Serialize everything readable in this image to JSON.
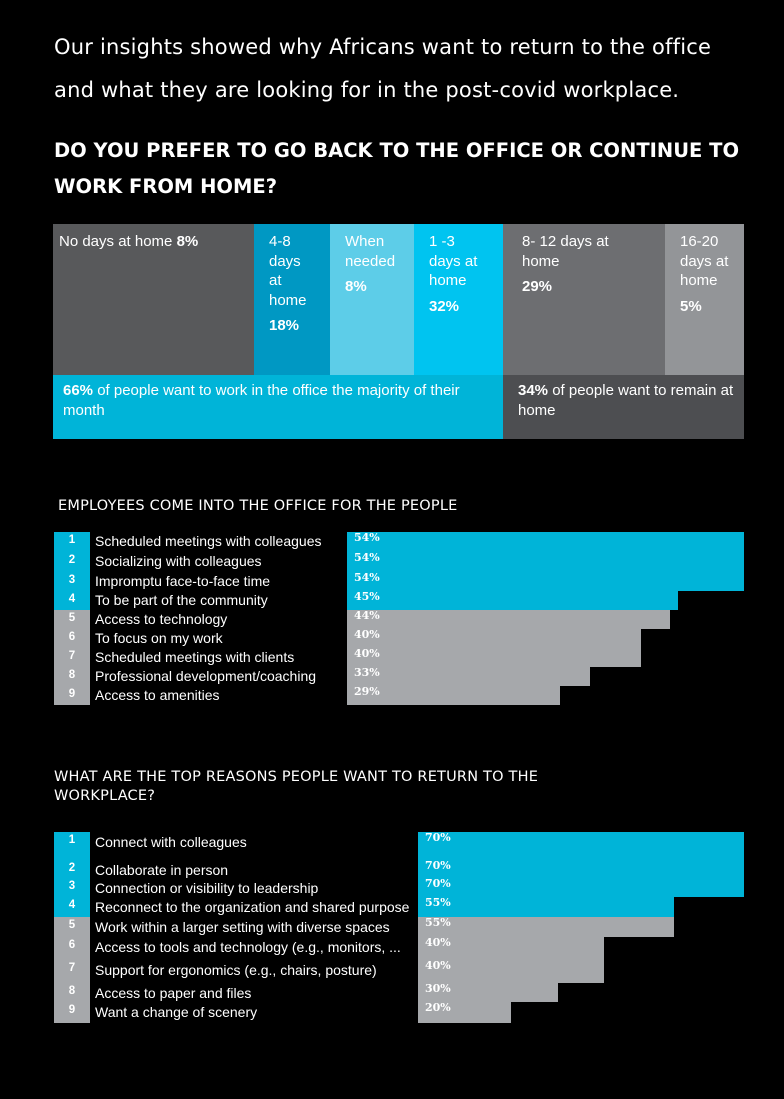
{
  "intro": {
    "line1": "Our insights showed why Africans want to return to the office",
    "line2": "and what they are looking for in the post-covid workplace."
  },
  "question": {
    "line1": "DO YOU PREFER TO GO BACK TO THE OFFICE OR CONTINUE TO",
    "line2": "WORK FROM HOME?"
  },
  "colors": {
    "cyan": "#00b4d8",
    "gray": "#a6a8ab",
    "dark_gray": "#58595b"
  },
  "chart_data": [
    {
      "type": "bar",
      "title": "DO YOU PREFER TO GO BACK TO THE OFFICE OR CONTINUE TO WORK FROM HOME?",
      "orientation": "stacked-horizontal",
      "segments": [
        {
          "label": "No days at home",
          "value": 8,
          "value_label": "8%",
          "color": "#58595b"
        },
        {
          "label": "4-8 days at home",
          "value": 18,
          "value_label": "18%",
          "color": "#0098c3"
        },
        {
          "label": "When needed",
          "value": 8,
          "value_label": "8%",
          "color": "#5dcde8"
        },
        {
          "label": "1 -3 days at home",
          "value": 32,
          "value_label": "32%",
          "color": "#00c4f0"
        },
        {
          "label": "8- 12 days at home",
          "value": 29,
          "value_label": "29%",
          "color": "#6d6e71"
        },
        {
          "label": "16-20 days at home",
          "value": 5,
          "value_label": "5%",
          "color": "#939598"
        }
      ],
      "summary": [
        {
          "value": 66,
          "value_label": "66%",
          "text": " of people want to work in the office  the majority of their month",
          "color": "#00b4d8"
        },
        {
          "value": 34,
          "value_label": "34%",
          "text": " of people want to remain at home",
          "color": "#4d4e51"
        }
      ]
    },
    {
      "type": "bar",
      "title": "EMPLOYEES COME INTO THE OFFICE FOR THE PEOPLE",
      "orientation": "horizontal",
      "xlim": [
        0,
        54
      ],
      "items": [
        {
          "rank": "1",
          "label": "Scheduled meetings with colleagues",
          "value": 54,
          "value_label": "54%",
          "highlight": true
        },
        {
          "rank": "2",
          "label": "Socializing with colleagues",
          "value": 54,
          "value_label": "54%",
          "highlight": true
        },
        {
          "rank": "3",
          "label": "Impromptu face-to-face time",
          "value": 54,
          "value_label": "54%",
          "highlight": true
        },
        {
          "rank": "4",
          "label": "To be part of the community",
          "value": 45,
          "value_label": "45%",
          "highlight": true
        },
        {
          "rank": "5",
          "label": "Access to technology",
          "value": 44,
          "value_label": "44%",
          "highlight": false
        },
        {
          "rank": "6",
          "label": "To focus on my work",
          "value": 40,
          "value_label": "40%",
          "highlight": false
        },
        {
          "rank": "7",
          "label": "Scheduled meetings with clients",
          "value": 40,
          "value_label": "40%",
          "highlight": false
        },
        {
          "rank": "8",
          "label": "Professional development/coaching",
          "value": 33,
          "value_label": "33%",
          "highlight": false
        },
        {
          "rank": "9",
          "label": "Access to amenities",
          "value": 29,
          "value_label": "29%",
          "highlight": false
        }
      ]
    },
    {
      "type": "bar",
      "title": "WHAT ARE THE TOP REASONS PEOPLE WANT TO RETURN TO THE WORKPLACE?",
      "title_line1": "WHAT ARE THE TOP REASONS PEOPLE WANT TO RETURN TO THE",
      "title_line2": "WORKPLACE?",
      "orientation": "horizontal",
      "xlim": [
        0,
        70
      ],
      "items": [
        {
          "rank": "1",
          "label": "Connect with colleagues",
          "value": 70,
          "value_label": "70%",
          "highlight": true
        },
        {
          "rank": "2",
          "label": "Collaborate in person",
          "value": 70,
          "value_label": "70%",
          "highlight": true
        },
        {
          "rank": "3",
          "label": "Connection or visibility to leadership",
          "value": 70,
          "value_label": "70%",
          "highlight": true
        },
        {
          "rank": "4",
          "label": "Reconnect to the organization and shared purpose",
          "value": 55,
          "value_label": "55%",
          "highlight": true
        },
        {
          "rank": "5",
          "label": "Work within a larger setting with diverse spaces",
          "value": 55,
          "value_label": "55%",
          "highlight": false
        },
        {
          "rank": "6",
          "label": "Access to tools and technology (e.g., monitors, ...",
          "value": 40,
          "value_label": "40%",
          "highlight": false
        },
        {
          "rank": "7",
          "label": "Support for ergonomics (e.g., chairs, posture)",
          "value": 40,
          "value_label": "40%",
          "highlight": false
        },
        {
          "rank": "8",
          "label": "Access to paper and files",
          "value": 30,
          "value_label": "30%",
          "highlight": false
        },
        {
          "rank": "9",
          "label": "Want a change of scenery",
          "value": 20,
          "value_label": "20%",
          "highlight": false
        }
      ]
    }
  ]
}
